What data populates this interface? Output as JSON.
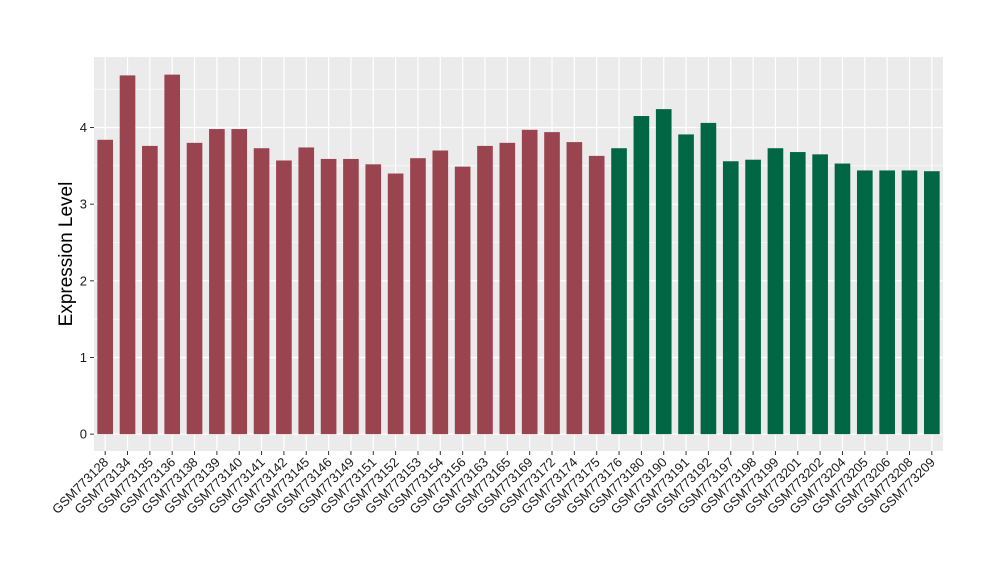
{
  "chart_data": {
    "type": "bar",
    "title": "",
    "xlabel": "",
    "ylabel": "Expression Level",
    "ylim": [
      -0.22,
      4.92
    ],
    "yticks": [
      0,
      1,
      2,
      3,
      4
    ],
    "grid": true,
    "legend": "none",
    "colors": {
      "group_1": "#9a4450",
      "group_2": "#006644",
      "panel_bg": "#ebebeb",
      "grid": "#ffffff"
    },
    "categories": [
      "GSM773128",
      "GSM773134",
      "GSM773135",
      "GSM773136",
      "GSM773138",
      "GSM773139",
      "GSM773140",
      "GSM773141",
      "GSM773142",
      "GSM773145",
      "GSM773146",
      "GSM773149",
      "GSM773151",
      "GSM773152",
      "GSM773153",
      "GSM773154",
      "GSM773156",
      "GSM773163",
      "GSM773165",
      "GSM773169",
      "GSM773172",
      "GSM773174",
      "GSM773175",
      "GSM773176",
      "GSM773180",
      "GSM773190",
      "GSM773191",
      "GSM773192",
      "GSM773197",
      "GSM773198",
      "GSM773199",
      "GSM773201",
      "GSM773202",
      "GSM773204",
      "GSM773205",
      "GSM773206",
      "GSM773208",
      "GSM773209"
    ],
    "values": [
      3.84,
      4.68,
      3.76,
      4.69,
      3.8,
      3.98,
      3.98,
      3.73,
      3.57,
      3.74,
      3.59,
      3.59,
      3.52,
      3.4,
      3.6,
      3.7,
      3.49,
      3.76,
      3.8,
      3.97,
      3.94,
      3.81,
      3.63,
      3.73,
      4.15,
      4.24,
      3.91,
      4.06,
      3.56,
      3.58,
      3.73,
      3.68,
      3.65,
      3.53,
      3.44,
      3.44,
      3.44,
      3.43
    ],
    "groups": [
      1,
      1,
      1,
      1,
      1,
      1,
      1,
      1,
      1,
      1,
      1,
      1,
      1,
      1,
      1,
      1,
      1,
      1,
      1,
      1,
      1,
      1,
      1,
      2,
      2,
      2,
      2,
      2,
      2,
      2,
      2,
      2,
      2,
      2,
      2,
      2,
      2,
      2
    ]
  }
}
